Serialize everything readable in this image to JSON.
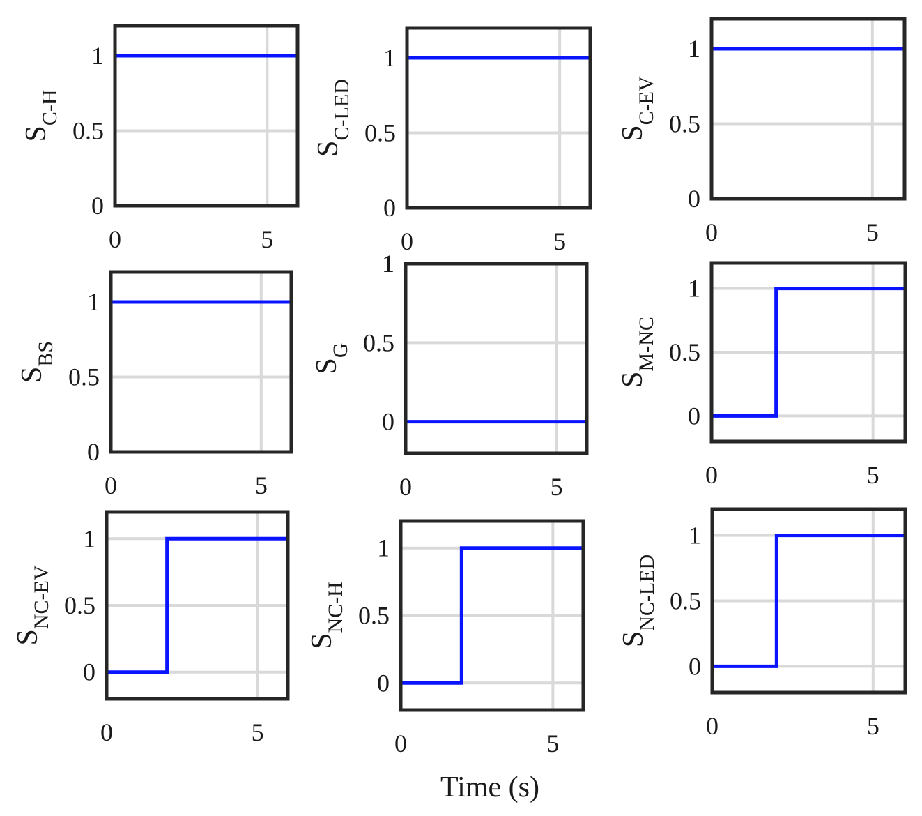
{
  "figure": {
    "xlabel": "Time (s)"
  },
  "chart_data": [
    {
      "type": "line",
      "ylabel_main": "S",
      "ylabel_sub": "C-H",
      "xlim": [
        0,
        6
      ],
      "ylim": [
        0,
        1.2
      ],
      "xticks": [
        "0",
        "5"
      ],
      "yticks": [
        "0",
        "0.5",
        "1"
      ],
      "series": [
        {
          "x": [
            0,
            6
          ],
          "y": [
            1,
            1
          ]
        }
      ]
    },
    {
      "type": "line",
      "ylabel_main": "S",
      "ylabel_sub": "C-LED",
      "xlim": [
        0,
        6
      ],
      "ylim": [
        0,
        1.2
      ],
      "xticks": [
        "0",
        "5"
      ],
      "yticks": [
        "0",
        "0.5",
        "1"
      ],
      "series": [
        {
          "x": [
            0,
            6
          ],
          "y": [
            1,
            1
          ]
        }
      ]
    },
    {
      "type": "line",
      "ylabel_main": "S",
      "ylabel_sub": "C-EV",
      "xlim": [
        0,
        6
      ],
      "ylim": [
        0,
        1.2
      ],
      "xticks": [
        "0",
        "5"
      ],
      "yticks": [
        "0",
        "0.5",
        "1"
      ],
      "series": [
        {
          "x": [
            0,
            6
          ],
          "y": [
            1,
            1
          ]
        }
      ]
    },
    {
      "type": "line",
      "ylabel_main": "S",
      "ylabel_sub": "BS",
      "xlim": [
        0,
        6
      ],
      "ylim": [
        0,
        1.2
      ],
      "xticks": [
        "0",
        "5"
      ],
      "yticks": [
        "0",
        "0.5",
        "1"
      ],
      "series": [
        {
          "x": [
            0,
            6
          ],
          "y": [
            1,
            1
          ]
        }
      ]
    },
    {
      "type": "line",
      "ylabel_main": "S",
      "ylabel_sub": "G",
      "xlim": [
        0,
        6
      ],
      "ylim": [
        -0.2,
        1
      ],
      "xticks": [
        "0",
        "5"
      ],
      "yticks": [
        "0",
        "0.5",
        "1"
      ],
      "series": [
        {
          "x": [
            0,
            6
          ],
          "y": [
            0,
            0
          ]
        }
      ]
    },
    {
      "type": "line",
      "ylabel_main": "S",
      "ylabel_sub": "M-NC",
      "xlim": [
        0,
        6
      ],
      "ylim": [
        -0.2,
        1.2
      ],
      "xticks": [
        "0",
        "5"
      ],
      "yticks": [
        "0",
        "0.5",
        "1"
      ],
      "series": [
        {
          "x": [
            0,
            2,
            2,
            6
          ],
          "y": [
            0,
            0,
            1,
            1
          ]
        }
      ]
    },
    {
      "type": "line",
      "ylabel_main": "S",
      "ylabel_sub": "NC-EV",
      "xlim": [
        0,
        6
      ],
      "ylim": [
        -0.2,
        1.2
      ],
      "xticks": [
        "0",
        "5"
      ],
      "yticks": [
        "0",
        "0.5",
        "1"
      ],
      "series": [
        {
          "x": [
            0,
            2,
            2,
            6
          ],
          "y": [
            0,
            0,
            1,
            1
          ]
        }
      ]
    },
    {
      "type": "line",
      "ylabel_main": "S",
      "ylabel_sub": "NC-H",
      "xlim": [
        0,
        6
      ],
      "ylim": [
        -0.2,
        1.2
      ],
      "xticks": [
        "0",
        "5"
      ],
      "yticks": [
        "0",
        "0.5",
        "1"
      ],
      "series": [
        {
          "x": [
            0,
            2,
            2,
            6
          ],
          "y": [
            0,
            0,
            1,
            1
          ]
        }
      ]
    },
    {
      "type": "line",
      "ylabel_main": "S",
      "ylabel_sub": "NC-LED",
      "xlim": [
        0,
        6
      ],
      "ylim": [
        -0.2,
        1.2
      ],
      "xticks": [
        "0",
        "5"
      ],
      "yticks": [
        "0",
        "0.5",
        "1"
      ],
      "series": [
        {
          "x": [
            0,
            2,
            2,
            6
          ],
          "y": [
            0,
            0,
            1,
            1
          ]
        }
      ]
    }
  ]
}
